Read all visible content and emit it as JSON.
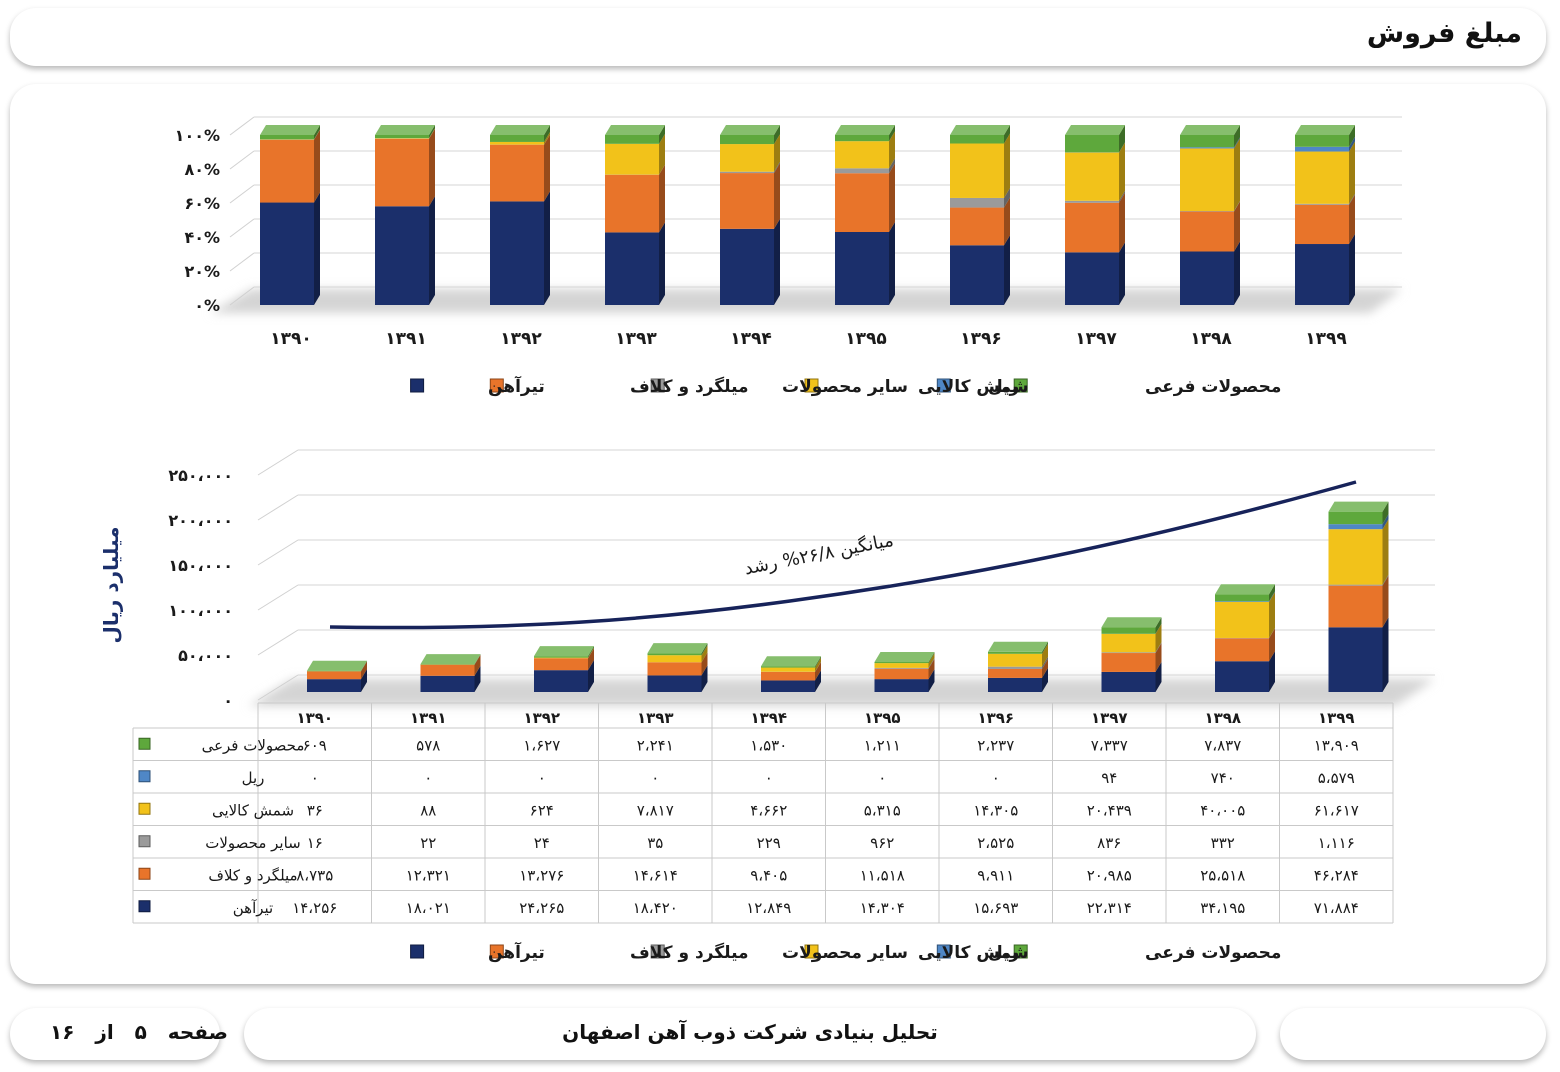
{
  "header": {
    "title": "مبلغ فروش"
  },
  "footer": {
    "company": "تحلیل بنیادی شرکت ذوب آهن اصفهان",
    "page_word": "صفحه",
    "page_number": "۵",
    "of_word": "از",
    "total_pages": "۱۶"
  },
  "colors": {
    "tirahan": "#1b2f6b",
    "milgerd": "#e8742a",
    "sayer": "#9a9a9a",
    "shamsh": "#f2c21a",
    "rail": "#4f87c6",
    "farei": "#5ea83c",
    "trend": "#17235a"
  },
  "chart_data": [
    {
      "type": "bar",
      "stacked": true,
      "percent": true,
      "categories": [
        "۱۳۹۰",
        "۱۳۹۱",
        "۱۳۹۲",
        "۱۳۹۳",
        "۱۳۹۴",
        "۱۳۹۵",
        "۱۳۹۶",
        "۱۳۹۷",
        "۱۳۹۸",
        "۱۳۹۹"
      ],
      "ytick_labels": [
        "۰%",
        "۲۰%",
        "۴۰%",
        "۶۰%",
        "۸۰%",
        "۱۰۰%"
      ],
      "ylim": [
        0,
        100
      ],
      "legend_position": "bottom",
      "legend": [
        "محصولات فرعی",
        "ریل",
        "شمش کالایی",
        "سایر محصولات",
        "میلگرد و کلاف",
        "تیرآهن"
      ]
    },
    {
      "type": "bar",
      "stacked": true,
      "categories": [
        "۱۳۹۰",
        "۱۳۹۱",
        "۱۳۹۲",
        "۱۳۹۳",
        "۱۳۹۴",
        "۱۳۹۵",
        "۱۳۹۶",
        "۱۳۹۷",
        "۱۳۹۸",
        "۱۳۹۹"
      ],
      "ylabel": "میلیارد ریال",
      "ylim": [
        0,
        250000
      ],
      "ytick_labels": [
        "۰",
        "۵۰،۰۰۰",
        "۱۰۰،۰۰۰",
        "۱۵۰،۰۰۰",
        "۲۰۰،۰۰۰",
        "۲۵۰،۰۰۰"
      ],
      "annotation": "میانگین ۲۶/۸% رشد",
      "legend_position": "bottom",
      "series": [
        {
          "name": "محصولات فرعی",
          "values": [
            609,
            578,
            1627,
            2241,
            1530,
            1211,
            2237,
            7337,
            7837,
            13909
          ],
          "labels": [
            "۶۰۹",
            "۵۷۸",
            "۱،۶۲۷",
            "۲،۲۴۱",
            "۱،۵۳۰",
            "۱،۲۱۱",
            "۲،۲۳۷",
            "۷،۳۳۷",
            "۷،۸۳۷",
            "۱۳،۹۰۹"
          ]
        },
        {
          "name": "ریل",
          "values": [
            0,
            0,
            0,
            0,
            0,
            0,
            0,
            94,
            740,
            5579
          ],
          "labels": [
            "۰",
            "۰",
            "۰",
            "۰",
            "۰",
            "۰",
            "۰",
            "۹۴",
            "۷۴۰",
            "۵،۵۷۹"
          ]
        },
        {
          "name": "شمش کالایی",
          "values": [
            36,
            88,
            624,
            7817,
            4662,
            5315,
            14305,
            20439,
            40005,
            61617
          ],
          "labels": [
            "۳۶",
            "۸۸",
            "۶۲۴",
            "۷،۸۱۷",
            "۴،۶۶۲",
            "۵،۳۱۵",
            "۱۴،۳۰۵",
            "۲۰،۴۳۹",
            "۴۰،۰۰۵",
            "۶۱،۶۱۷"
          ]
        },
        {
          "name": "سایر محصولات",
          "values": [
            16,
            22,
            24,
            35,
            229,
            962,
            2525,
            836,
            332,
            1116
          ],
          "labels": [
            "۱۶",
            "۲۲",
            "۲۴",
            "۳۵",
            "۲۲۹",
            "۹۶۲",
            "۲،۵۲۵",
            "۸۳۶",
            "۳۳۲",
            "۱،۱۱۶"
          ]
        },
        {
          "name": "میلگرد و کلاف",
          "values": [
            8735,
            12321,
            13276,
            14614,
            9405,
            11518,
            9911,
            20985,
            25518,
            46284
          ],
          "labels": [
            "۸،۷۳۵",
            "۱۲،۳۲۱",
            "۱۳،۲۷۶",
            "۱۴،۶۱۴",
            "۹،۴۰۵",
            "۱۱،۵۱۸",
            "۹،۹۱۱",
            "۲۰،۹۸۵",
            "۲۵،۵۱۸",
            "۴۶،۲۸۴"
          ]
        },
        {
          "name": "تیرآهن",
          "values": [
            14256,
            18021,
            24265,
            18420,
            12849,
            14304,
            15693,
            22314,
            34195,
            71884
          ],
          "labels": [
            "۱۴،۲۵۶",
            "۱۸،۰۲۱",
            "۲۴،۲۶۵",
            "۱۸،۴۲۰",
            "۱۲،۸۴۹",
            "۱۴،۳۰۴",
            "۱۵،۶۹۳",
            "۲۲،۳۱۴",
            "۳۴،۱۹۵",
            "۷۱،۸۸۴"
          ]
        }
      ]
    }
  ]
}
